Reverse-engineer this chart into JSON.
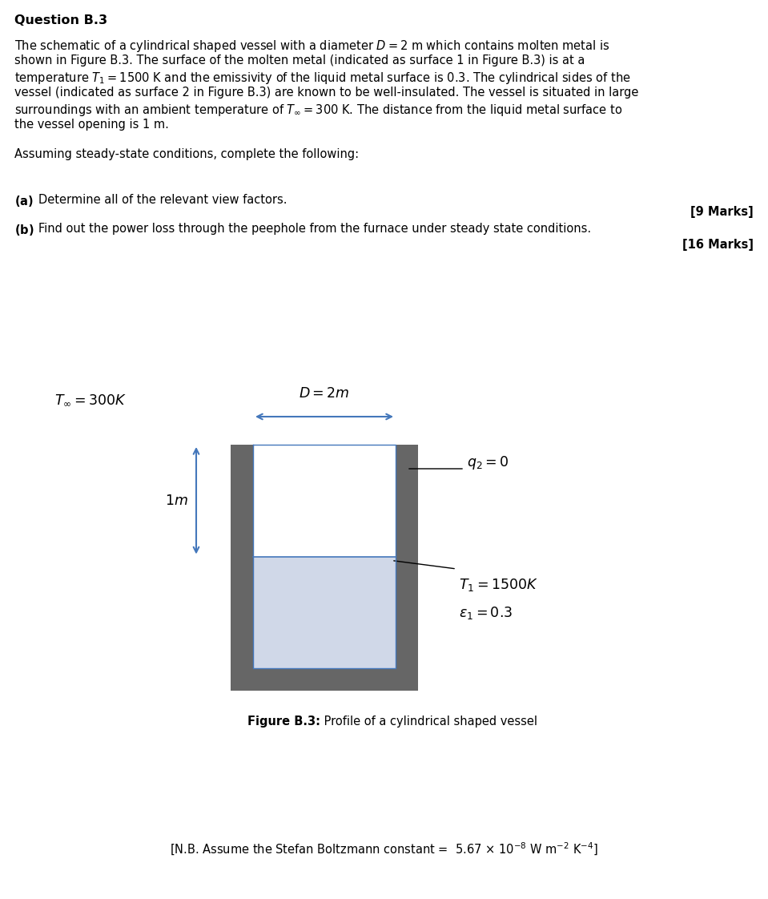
{
  "bg_color": "#ffffff",
  "title": "Question B.3",
  "wall_color": "#666666",
  "fill_color": "#d0d8e8",
  "arrow_color": "#4477bb",
  "text_color": "#000000",
  "line_color": "#4477bb",
  "para1_lines": [
    "The schematic of a cylindrical shaped vessel with a diameter $D = 2$ m which contains molten metal is",
    "shown in Figure B.3. The surface of the molten metal (indicated as surface 1 in Figure B.3) is at a",
    "temperature $T_1 = 1500$ K and the emissivity of the liquid metal surface is 0.3. The cylindrical sides of the",
    "vessel (indicated as surface 2 in Figure B.3) are known to be well-insulated. The vessel is situated in large",
    "surroundings with an ambient temperature of $T_\\infty = 300$ K. The distance from the liquid metal surface to",
    "the vessel opening is 1 m."
  ],
  "para2": "Assuming steady-state conditions, complete the following:",
  "parta_label": "(a)",
  "parta_text": "Determine all of the relevant view factors.",
  "marks_a": "[9 Marks]",
  "partb_label": "(b)",
  "partb_text": "Find out the power loss through the peephole from the furnace under steady state conditions.",
  "marks_b": "[16 Marks]",
  "label_Tinf": "$T_\\infty = 300K$",
  "label_D": "$D = 2m$",
  "label_1m": "$1m$",
  "label_q2": "$q_2 = 0$",
  "label_T1": "$T_1 = 1500K$",
  "label_eps1": "$\\varepsilon_1 = 0.3$",
  "fig_caption_bold": "Figure B.3:",
  "fig_caption_rest": " Profile of a cylindrical shaped vessel",
  "note_text": "[N.B. Assume the Stefan Boltzmann constant =  5.67 $\\times$ 10$^{-8}$ W m$^{-2}$ K$^{-4}$]",
  "font_body": 10.5,
  "font_title": 11.5,
  "font_diagram": 12.5
}
